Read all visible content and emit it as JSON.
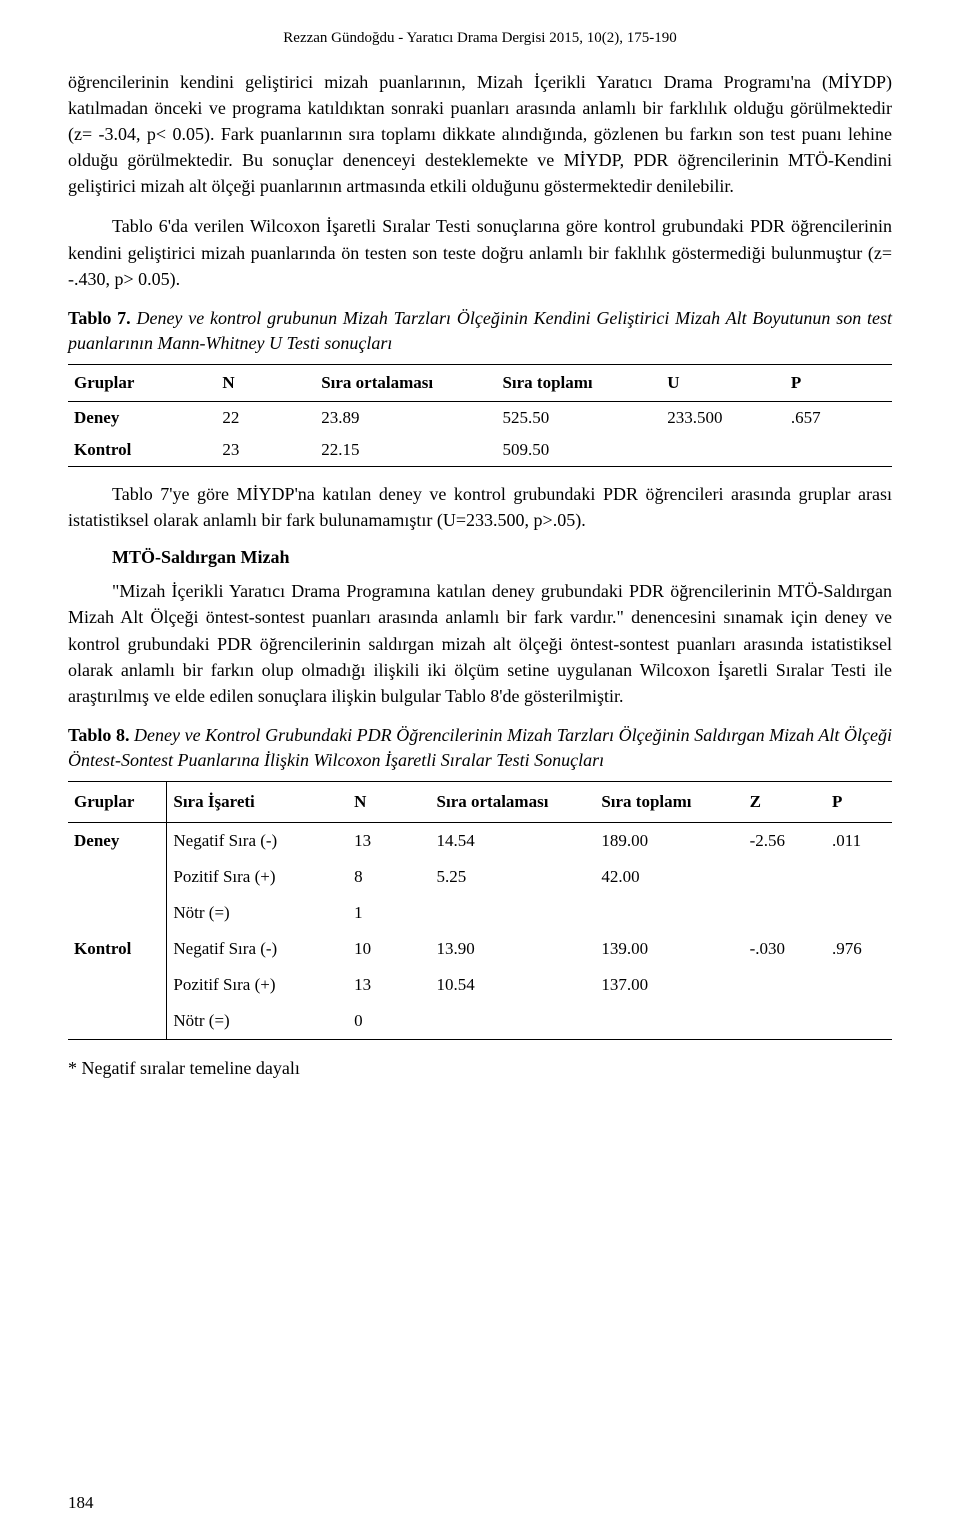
{
  "header": "Rezzan Gündoğdu - Yaratıcı Drama Dergisi 2015, 10(2), 175-190",
  "para1": "öğrencilerinin kendini geliştirici mizah puanlarının, Mizah İçerikli Yaratıcı Drama Programı'na (MİYDP) katılmadan önceki ve programa katıldıktan sonraki puanları arasında anlamlı bir farklılık olduğu görülmektedir (z= -3.04, p< 0.05). Fark puanlarının sıra toplamı dikkate alındığında, gözlenen bu farkın son test puanı lehine olduğu görülmektedir. Bu sonuçlar denenceyi desteklemekte ve MİYDP, PDR öğrencilerinin MTÖ-Kendini geliştirici mizah alt ölçeği puanlarının artmasında etkili olduğunu göstermektedir denilebilir.",
  "para2": "Tablo 6'da verilen Wilcoxon İşaretli Sıralar Testi sonuçlarına göre kontrol grubundaki PDR öğrencilerinin kendini geliştirici mizah puanlarında ön testen son teste doğru anlamlı bir faklılık göstermediği bulunmuştur (z= -.430, p> 0.05).",
  "table7": {
    "label": "Tablo 7.",
    "title_rest": "Deney ve kontrol grubunun Mizah Tarzları Ölçeğinin Kendini Geliştirici Mizah Alt Boyutunun son test puanlarının Mann-Whitney U Testi sonuçları",
    "columns": [
      "Gruplar",
      "N",
      "Sıra ortalaması",
      "Sıra toplamı",
      "U",
      "P"
    ],
    "rows": [
      [
        "Deney",
        "22",
        "23.89",
        "525.50",
        "233.500",
        ".657"
      ],
      [
        "Kontrol",
        "23",
        "22.15",
        "509.50",
        "",
        ""
      ]
    ],
    "col_widths": [
      "18%",
      "12%",
      "22%",
      "20%",
      "15%",
      "13%"
    ]
  },
  "para3": "Tablo 7'ye göre MİYDP'na katılan deney ve kontrol grubundaki PDR öğrencileri arasında gruplar arası istatistiksel olarak anlamlı bir fark bulunamamıştır (U=233.500, p>.05).",
  "subheading": "MTÖ-Saldırgan Mizah",
  "para4": "\"Mizah İçerikli Yaratıcı Drama Programına katılan deney grubundaki PDR öğrencilerinin MTÖ-Saldırgan Mizah Alt Ölçeği öntest-sontest puanları arasında anlamlı bir fark vardır.\" denencesini sınamak için deney ve kontrol grubundaki PDR öğrencilerinin saldırgan mizah alt ölçeği öntest-sontest puanları arasında istatistiksel olarak anlamlı bir farkın olup olmadığı ilişkili iki ölçüm setine uygulanan Wilcoxon İşaretli Sıralar Testi ile araştırılmış ve elde edilen sonuçlara ilişkin bulgular Tablo 8'de gösterilmiştir.",
  "table8": {
    "label": "Tablo 8.",
    "title_rest": "Deney ve Kontrol Grubundaki PDR Öğrencilerinin Mizah Tarzları Ölçeğinin Saldırgan Mizah Alt Ölçeği Öntest-Sontest Puanlarına İlişkin Wilcoxon İşaretli Sıralar Testi Sonuçları",
    "columns": [
      "Gruplar",
      "Sıra İşareti",
      "N",
      "Sıra ortalaması",
      "Sıra toplamı",
      "Z",
      "P"
    ],
    "rows": [
      [
        "Deney",
        "Negatif Sıra (-)",
        "13",
        "14.54",
        "189.00",
        "-2.56",
        ".011"
      ],
      [
        "",
        "Pozitif Sıra (+)",
        "8",
        "5.25",
        "42.00",
        "",
        ""
      ],
      [
        "",
        "Nötr (=)",
        "1",
        "",
        "",
        "",
        ""
      ],
      [
        "Kontrol",
        "Negatif Sıra (-)",
        "10",
        "13.90",
        "139.00",
        "-.030",
        ".976"
      ],
      [
        "",
        "Pozitif Sıra (+)",
        "13",
        "10.54",
        "137.00",
        "",
        ""
      ],
      [
        "",
        "Nötr (=)",
        "0",
        "",
        "",
        "",
        ""
      ]
    ],
    "col_widths": [
      "12%",
      "22%",
      "10%",
      "20%",
      "18%",
      "10%",
      "8%"
    ]
  },
  "footnote": "* Negatif sıralar temeline dayalı",
  "page_number": "184"
}
